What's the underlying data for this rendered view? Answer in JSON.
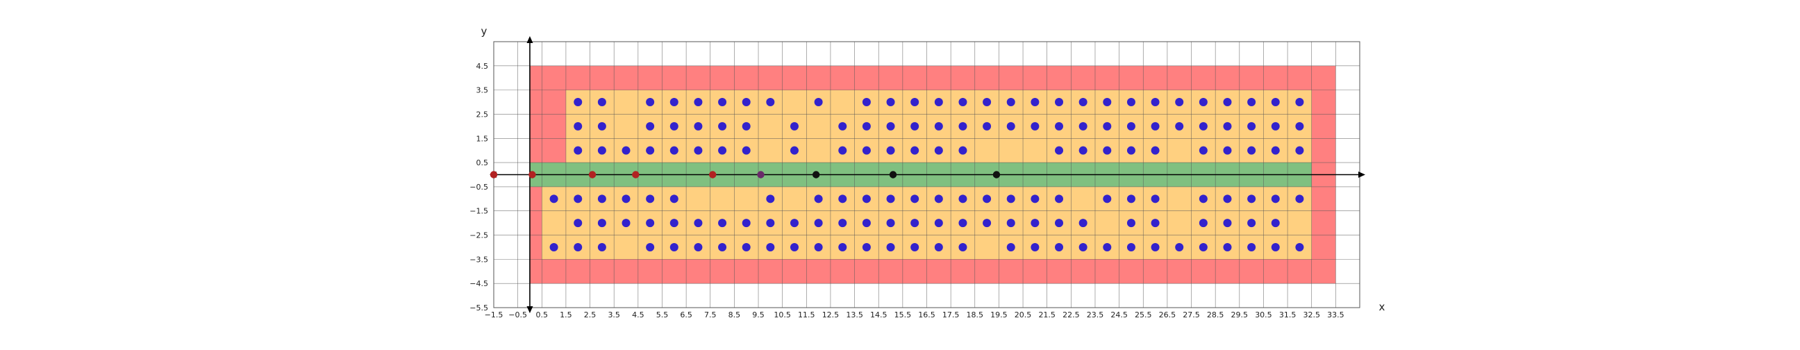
{
  "chart_data": {
    "type": "scatter",
    "title": "",
    "xlabel": "x",
    "ylabel": "y",
    "xlim": [
      -1.5,
      34.5
    ],
    "ylim": [
      -5.5,
      5.5
    ],
    "grid": true,
    "x_ticks": [
      "−1.5",
      "−0.5",
      "0.5",
      "1.5",
      "2.5",
      "3.5",
      "4.5",
      "5.5",
      "6.5",
      "7.5",
      "8.5",
      "9.5",
      "10.5",
      "11.5",
      "12.5",
      "13.5",
      "14.5",
      "15.5",
      "16.5",
      "17.5",
      "18.5",
      "19.5",
      "20.5",
      "21.5",
      "22.5",
      "23.5",
      "24.5",
      "25.5",
      "26.5",
      "27.5",
      "28.5",
      "29.5",
      "30.5",
      "31.5",
      "32.5",
      "33.5"
    ],
    "y_ticks": [
      "4.5",
      "3.5",
      "2.5",
      "1.5",
      "0.5",
      "−0.5",
      "−1.5",
      "−2.5",
      "−3.5",
      "−4.5",
      "−5.5"
    ],
    "colors": {
      "outer_region": "#ff8080",
      "inner_region": "#ffd080",
      "center_band": "#80c080",
      "upper_dots": "#3322cc",
      "lower_dots": "#3322cc",
      "red_dots": "#b22222",
      "purple_dot": "#6a2a6a",
      "black_dots": "#111111",
      "grid": "#555555",
      "axes": "#000000"
    },
    "regions": [
      {
        "fill": "outer_region",
        "x": [
          0,
          33.5
        ],
        "y": [
          -4.5,
          4.5
        ]
      },
      {
        "fill": "inner_region",
        "x": [
          0.5,
          32.5
        ],
        "y": [
          -3.5,
          0
        ]
      },
      {
        "fill": "inner_region",
        "x": [
          1.5,
          32.5
        ],
        "y": [
          0,
          3.5
        ]
      },
      {
        "fill": "center_band",
        "x": [
          0,
          32.5
        ],
        "y": [
          -0.5,
          0.5
        ]
      }
    ],
    "upper_rows": [
      {
        "y": 3,
        "x": [
          2,
          3,
          5,
          6,
          7,
          8,
          9,
          10,
          12,
          14,
          15,
          16,
          17,
          18,
          19,
          20,
          21,
          22,
          23,
          24,
          25,
          26,
          27,
          28,
          29,
          30,
          31,
          32
        ]
      },
      {
        "y": 2,
        "x": [
          2,
          3,
          5,
          6,
          7,
          8,
          9,
          11,
          13,
          14,
          15,
          16,
          17,
          18,
          19,
          20,
          21,
          22,
          23,
          24,
          25,
          26,
          27,
          28,
          29,
          30,
          31,
          32
        ]
      },
      {
        "y": 1,
        "x": [
          2,
          3,
          4,
          5,
          6,
          7,
          8,
          9,
          11,
          13,
          14,
          15,
          16,
          17,
          18,
          22,
          23,
          24,
          25,
          26,
          28,
          29,
          30,
          31,
          32
        ]
      }
    ],
    "lower_rows": [
      {
        "y": -1,
        "x": [
          1,
          2,
          3,
          4,
          5,
          6,
          10,
          12,
          13,
          14,
          15,
          16,
          17,
          18,
          19,
          20,
          21,
          22,
          24,
          25,
          26,
          28,
          29,
          30,
          31,
          32
        ]
      },
      {
        "y": -2,
        "x": [
          2,
          3,
          4,
          5,
          6,
          7,
          8,
          9,
          10,
          11,
          12,
          13,
          14,
          15,
          16,
          17,
          18,
          19,
          20,
          21,
          22,
          23,
          25,
          26,
          28,
          29,
          30,
          31
        ]
      },
      {
        "y": -3,
        "x": [
          1,
          2,
          3,
          5,
          6,
          7,
          8,
          9,
          10,
          11,
          12,
          13,
          14,
          15,
          16,
          17,
          18,
          20,
          21,
          22,
          23,
          24,
          25,
          26,
          27,
          28,
          29,
          30,
          31,
          32
        ]
      }
    ],
    "axis_points": [
      {
        "x": -1.5,
        "y": 0,
        "color": "red_dots"
      },
      {
        "x": 0.1,
        "y": 0,
        "color": "red_dots"
      },
      {
        "x": 2.6,
        "y": 0,
        "color": "red_dots"
      },
      {
        "x": 4.4,
        "y": 0,
        "color": "red_dots"
      },
      {
        "x": 7.6,
        "y": 0,
        "color": "red_dots"
      },
      {
        "x": 9.6,
        "y": 0,
        "color": "purple_dot"
      },
      {
        "x": 11.9,
        "y": 0,
        "color": "black_dots"
      },
      {
        "x": 15.1,
        "y": 0,
        "color": "black_dots"
      },
      {
        "x": 19.4,
        "y": 0,
        "color": "black_dots"
      }
    ]
  }
}
